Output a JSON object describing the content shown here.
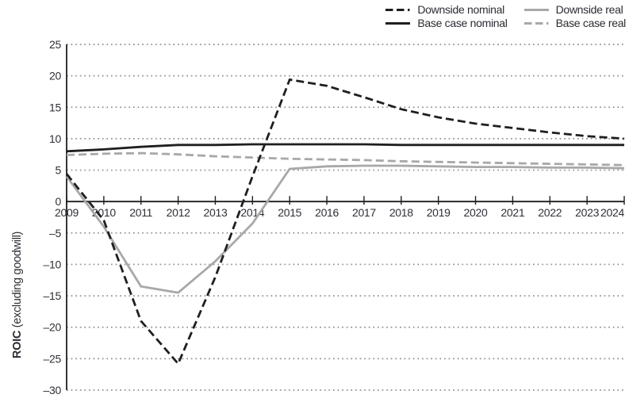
{
  "chart_data": {
    "type": "line",
    "title": "",
    "ylabel": {
      "bold": "ROIC",
      "normal": " (excluding goodwill)"
    },
    "xlabel": "",
    "x": [
      2009,
      2010,
      2011,
      2012,
      2013,
      2014,
      2015,
      2016,
      2017,
      2018,
      2019,
      2020,
      2021,
      2022,
      2023,
      2024
    ],
    "ylim": [
      -30,
      25
    ],
    "yticks": [
      {
        "value": 25,
        "label": "25"
      },
      {
        "value": 20,
        "label": "20"
      },
      {
        "value": 15,
        "label": "15"
      },
      {
        "value": 10,
        "label": "10"
      },
      {
        "value": 5,
        "label": "5"
      },
      {
        "value": 0,
        "label": "0"
      },
      {
        "value": -5,
        "label": "–5"
      },
      {
        "value": -10,
        "label": "–10"
      },
      {
        "value": -15,
        "label": "–15"
      },
      {
        "value": -20,
        "label": "–20"
      },
      {
        "value": -25,
        "label": "–25"
      },
      {
        "value": -30,
        "label": "–30"
      }
    ],
    "grid": "horizontal-dotted",
    "legend_position": "top-right",
    "series": [
      {
        "name": "Downside nominal",
        "color": "#1f1f1f",
        "dash": "dashed",
        "values": [
          4.4,
          -3.0,
          -19.0,
          -25.8,
          -12.0,
          4.0,
          19.4,
          18.4,
          16.6,
          14.7,
          13.4,
          12.4,
          11.7,
          11.0,
          10.4,
          10.0
        ]
      },
      {
        "name": "Downside real",
        "color": "#a8a8a8",
        "dash": "solid",
        "values": [
          4.0,
          -4.0,
          -13.5,
          -14.5,
          -9.5,
          -3.5,
          5.2,
          5.6,
          5.7,
          5.7,
          5.6,
          5.5,
          5.5,
          5.4,
          5.4,
          5.3
        ]
      },
      {
        "name": "Base case nominal",
        "color": "#1f1f1f",
        "dash": "solid",
        "values": [
          8.0,
          8.3,
          8.7,
          9.0,
          9.0,
          9.1,
          9.1,
          9.1,
          9.1,
          9.0,
          9.0,
          9.0,
          9.0,
          9.0,
          9.0,
          9.0
        ]
      },
      {
        "name": "Base case real",
        "color": "#a8a8a8",
        "dash": "dashed",
        "values": [
          7.4,
          7.6,
          7.7,
          7.5,
          7.2,
          7.0,
          6.8,
          6.7,
          6.6,
          6.4,
          6.3,
          6.2,
          6.1,
          6.0,
          5.9,
          5.8
        ]
      }
    ],
    "colors": {
      "axis": "#1f1f1f",
      "gridline": "#909090",
      "text": "#2e2f36",
      "background": "#ffffff"
    }
  }
}
